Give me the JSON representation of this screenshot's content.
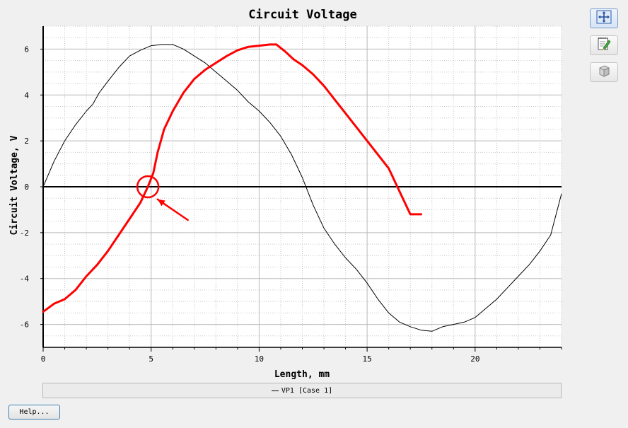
{
  "chart_data": {
    "type": "line",
    "title": "Circuit Voltage",
    "xlabel": "Length, mm",
    "ylabel": "Circuit Voltage, V",
    "xlim": [
      0,
      24
    ],
    "ylim": [
      -7,
      7
    ],
    "xticks": [
      0,
      5,
      10,
      15,
      20
    ],
    "yticks": [
      -6,
      -4,
      -2,
      0,
      2,
      4,
      6
    ],
    "grid": true,
    "series": [
      {
        "name": "VP1 [Case 1]",
        "color": "#000000",
        "x": [
          0,
          0.5,
          1,
          1.5,
          2,
          2.3,
          2.6,
          3,
          3.5,
          4,
          4.5,
          5,
          5.5,
          6,
          6.5,
          7,
          7.5,
          8,
          8.5,
          9,
          9.5,
          10,
          10.5,
          11,
          11.5,
          12,
          12.5,
          13,
          13.5,
          14,
          14.5,
          15,
          15.5,
          16,
          16.5,
          17,
          17.5,
          18,
          18.5,
          19,
          19.5,
          20,
          20.5,
          21,
          21.5,
          22,
          22.5,
          23,
          23.5,
          24
        ],
        "y": [
          0,
          1.1,
          2.0,
          2.7,
          3.3,
          3.6,
          4.1,
          4.6,
          5.2,
          5.7,
          5.95,
          6.15,
          6.2,
          6.2,
          6.0,
          5.7,
          5.4,
          5.0,
          4.6,
          4.2,
          3.7,
          3.3,
          2.8,
          2.2,
          1.4,
          0.4,
          -0.8,
          -1.8,
          -2.5,
          -3.1,
          -3.6,
          -4.2,
          -4.9,
          -5.5,
          -5.9,
          -6.1,
          -6.25,
          -6.3,
          -6.1,
          -6.0,
          -5.9,
          -5.7,
          -5.3,
          -4.9,
          -4.4,
          -3.9,
          -3.4,
          -2.8,
          -2.1,
          -0.3
        ]
      }
    ],
    "annotations": [
      {
        "type": "freehand-line",
        "color": "#ff0000",
        "x": [
          0,
          0.5,
          1,
          1.5,
          2,
          2.5,
          3,
          3.5,
          4,
          4.5,
          4.85,
          5.1,
          5.3,
          5.6,
          6,
          6.5,
          7,
          7.5,
          8,
          8.5,
          9,
          9.5,
          10,
          10.5,
          10.8,
          11.2,
          11.6,
          12,
          12.5,
          13,
          13.5,
          14,
          14.5,
          15,
          15.5,
          16,
          16.5,
          17,
          17.5
        ],
        "y": [
          -5.45,
          -5.1,
          -4.9,
          -4.5,
          -3.9,
          -3.4,
          -2.8,
          -2.1,
          -1.4,
          -0.7,
          0,
          0.6,
          1.5,
          2.5,
          3.3,
          4.1,
          4.7,
          5.1,
          5.4,
          5.7,
          5.95,
          6.1,
          6.15,
          6.2,
          6.2,
          5.9,
          5.55,
          5.3,
          4.9,
          4.4,
          3.8,
          3.2,
          2.6,
          2.0,
          1.4,
          0.8,
          -0.2,
          -1.2,
          -1.2
        ]
      },
      {
        "type": "circle",
        "color": "#ff0000",
        "x": 4.85,
        "y": 0
      },
      {
        "type": "arrow",
        "color": "#ff0000",
        "from": [
          6.7,
          -1.45
        ],
        "to": [
          5.3,
          -0.55
        ]
      }
    ]
  },
  "legend": {
    "label": "VP1 [Case 1]"
  },
  "toolbar": {
    "buttons": [
      {
        "icon": "pan-zoom-arrows-icon",
        "active": true
      },
      {
        "icon": "edit-notepad-icon",
        "active": false
      },
      {
        "icon": "3d-box-icon",
        "active": false
      }
    ]
  },
  "help": {
    "label": "Help..."
  }
}
